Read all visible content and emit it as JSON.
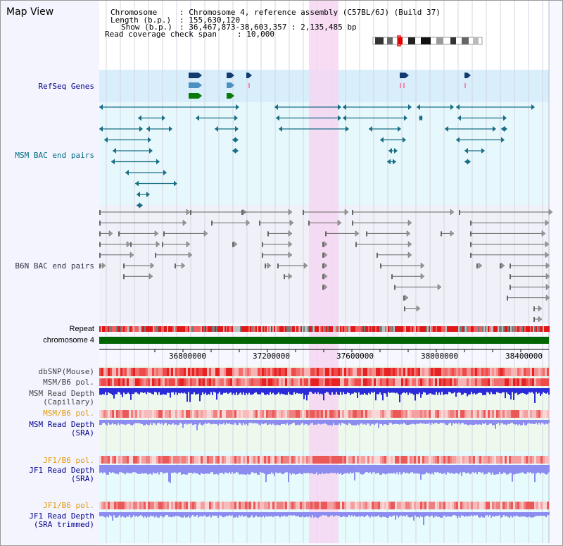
{
  "view_title": "Map View",
  "header": {
    "chromosome_label": "Chromosome",
    "chromosome_value": ": Chromosome 4, reference assembly (C57BL/6J) (Build 37)",
    "length_label": "Length (b.p.)",
    "length_value": ": 155,630,120",
    "show_label": "Show (b.p.)",
    "show_value": ": 36,467,873-38,603,357 : 2,135,485 bp",
    "coverage_label": "Read coverage check span",
    "coverage_value": ": 10,000"
  },
  "tracks": {
    "refseq_genes": "RefSeq Genes",
    "msm_bac": "MSM BAC end pairs",
    "b6n_bac": "B6N BAC end pairs",
    "repeat": "Repeat",
    "chromosome": "chromosome 4",
    "dbsnp": "dbSNP(Mouse)",
    "msm_b6_pol_1": "MSM/B6 pol.",
    "msm_depth_cap_1": "MSM Read Depth",
    "msm_depth_cap_2": "(Capillary)",
    "msm_b6_pol_2": "MSM/B6 pol.",
    "msm_depth_sra_1": "MSM Read Depth",
    "msm_depth_sra_2": "(SRA)",
    "jf1_b6_pol_1": "JF1/B6 pol.",
    "jf1_depth_sra_1": "JF1 Read Depth",
    "jf1_depth_sra_2": "(SRA)",
    "jf1_b6_pol_2": "JF1/B6 pol.",
    "jf1_depth_trim_1": "JF1 Read Depth",
    "jf1_depth_trim_2": "(SRA trimmed)"
  },
  "axis": {
    "ticks": [
      "36800000",
      "37200000",
      "37600000",
      "38000000",
      "38400000"
    ]
  },
  "colors": {
    "background": "#f7f7ff",
    "refseq_band": "#d8eefb",
    "msm_band": "#e6f8fb",
    "b6n_band": "#f0f0f8",
    "highlight": "#f6d6f2",
    "chromosome_bar": "#006400",
    "label_blue": "#00008b",
    "label_teal": "#006b80",
    "label_orange": "#e59900",
    "depth_blue": "#2a2ad8",
    "depth_light_blue": "#8c8cf0"
  }
}
